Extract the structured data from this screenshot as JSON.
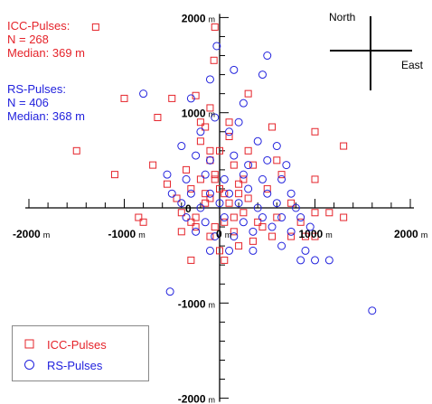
{
  "chart_data": {
    "type": "scatter",
    "xlim": [
      -2000,
      2000
    ],
    "ylim": [
      -2000,
      2000
    ],
    "x_ticks": [
      "-2000",
      "-1000",
      "0",
      "1000",
      "2000"
    ],
    "y_ticks": [
      "2000",
      "1000",
      "0",
      "-1000",
      "-2000"
    ],
    "tick_unit": "m",
    "compass": {
      "north": "North",
      "east": "East"
    },
    "annotations": {
      "icc": [
        "ICC-Pulses:",
        "N = 268",
        "Median: 369 m"
      ],
      "rs": [
        "RS-Pulses:",
        "N = 406",
        "Median: 368 m"
      ]
    },
    "series": [
      {
        "name": "ICC-Pulses",
        "marker": "square",
        "color": "#e5232a",
        "points": [
          [
            -1300,
            1900
          ],
          [
            -50,
            1900
          ],
          [
            -60,
            1550
          ],
          [
            -1000,
            1150
          ],
          [
            -500,
            1150
          ],
          [
            -250,
            1180
          ],
          [
            300,
            1200
          ],
          [
            -650,
            950
          ],
          [
            -200,
            900
          ],
          [
            -100,
            1050
          ],
          [
            550,
            850
          ],
          [
            1000,
            800
          ],
          [
            -1500,
            600
          ],
          [
            -700,
            450
          ],
          [
            -200,
            700
          ],
          [
            -100,
            500
          ],
          [
            300,
            600
          ],
          [
            600,
            500
          ],
          [
            1300,
            650
          ],
          [
            -1100,
            350
          ],
          [
            -300,
            200
          ],
          [
            -100,
            100
          ],
          [
            50,
            150
          ],
          [
            200,
            250
          ],
          [
            500,
            200
          ],
          [
            750,
            50
          ],
          [
            1000,
            300
          ],
          [
            -800,
            -150
          ],
          [
            -400,
            -50
          ],
          [
            -300,
            -150
          ],
          [
            150,
            -100
          ],
          [
            450,
            -200
          ],
          [
            600,
            -100
          ],
          [
            850,
            -150
          ],
          [
            1000,
            -50
          ],
          [
            1150,
            -50
          ],
          [
            1300,
            -100
          ],
          [
            -850,
            -100
          ],
          [
            -400,
            -250
          ],
          [
            -250,
            -200
          ],
          [
            150,
            -250
          ],
          [
            550,
            -300
          ],
          [
            750,
            -300
          ],
          [
            900,
            -300
          ],
          [
            1000,
            -300
          ],
          [
            -300,
            -550
          ],
          [
            0,
            -450
          ],
          [
            200,
            -400
          ],
          [
            -50,
            -200
          ],
          [
            50,
            -150
          ],
          [
            -150,
            50
          ],
          [
            250,
            -50
          ],
          [
            100,
            50
          ],
          [
            0,
            200
          ],
          [
            -50,
            350
          ],
          [
            150,
            450
          ],
          [
            -200,
            300
          ],
          [
            300,
            100
          ],
          [
            -100,
            -300
          ],
          [
            350,
            -350
          ],
          [
            -350,
            400
          ],
          [
            400,
            -150
          ],
          [
            -450,
            100
          ],
          [
            0,
            600
          ],
          [
            100,
            750
          ],
          [
            -150,
            850
          ],
          [
            -50,
            300
          ],
          [
            200,
            150
          ],
          [
            -250,
            -100
          ],
          [
            650,
            350
          ],
          [
            -550,
            250
          ],
          [
            50,
            -550
          ],
          [
            250,
            300
          ],
          [
            -150,
            150
          ],
          [
            350,
            450
          ],
          [
            -100,
            600
          ],
          [
            100,
            900
          ]
        ]
      },
      {
        "name": "RS-Pulses",
        "marker": "circle",
        "color": "#2222dd",
        "points": [
          [
            -30,
            1700
          ],
          [
            500,
            1600
          ],
          [
            -100,
            1350
          ],
          [
            150,
            1450
          ],
          [
            450,
            1400
          ],
          [
            -800,
            1200
          ],
          [
            -300,
            1150
          ],
          [
            250,
            1100
          ],
          [
            -50,
            950
          ],
          [
            200,
            900
          ],
          [
            -200,
            800
          ],
          [
            100,
            800
          ],
          [
            400,
            700
          ],
          [
            600,
            650
          ],
          [
            -400,
            650
          ],
          [
            -250,
            550
          ],
          [
            -100,
            500
          ],
          [
            150,
            550
          ],
          [
            300,
            450
          ],
          [
            500,
            500
          ],
          [
            700,
            450
          ],
          [
            -550,
            350
          ],
          [
            -350,
            300
          ],
          [
            -150,
            350
          ],
          [
            50,
            300
          ],
          [
            250,
            350
          ],
          [
            450,
            300
          ],
          [
            650,
            300
          ],
          [
            -500,
            150
          ],
          [
            -300,
            150
          ],
          [
            -100,
            150
          ],
          [
            100,
            150
          ],
          [
            300,
            200
          ],
          [
            500,
            150
          ],
          [
            750,
            150
          ],
          [
            -400,
            50
          ],
          [
            -200,
            0
          ],
          [
            0,
            50
          ],
          [
            200,
            50
          ],
          [
            400,
            0
          ],
          [
            600,
            50
          ],
          [
            800,
            0
          ],
          [
            -350,
            -100
          ],
          [
            -150,
            -150
          ],
          [
            50,
            -100
          ],
          [
            250,
            -150
          ],
          [
            450,
            -100
          ],
          [
            650,
            -100
          ],
          [
            850,
            -100
          ],
          [
            -250,
            -250
          ],
          [
            -50,
            -300
          ],
          [
            150,
            -300
          ],
          [
            350,
            -250
          ],
          [
            550,
            -200
          ],
          [
            750,
            -250
          ],
          [
            950,
            -200
          ],
          [
            -100,
            -450
          ],
          [
            100,
            -450
          ],
          [
            350,
            -450
          ],
          [
            650,
            -400
          ],
          [
            900,
            -450
          ],
          [
            1000,
            -550
          ],
          [
            1150,
            -550
          ],
          [
            -520,
            -880
          ],
          [
            1600,
            -1080
          ],
          [
            850,
            -550
          ]
        ]
      }
    ]
  }
}
